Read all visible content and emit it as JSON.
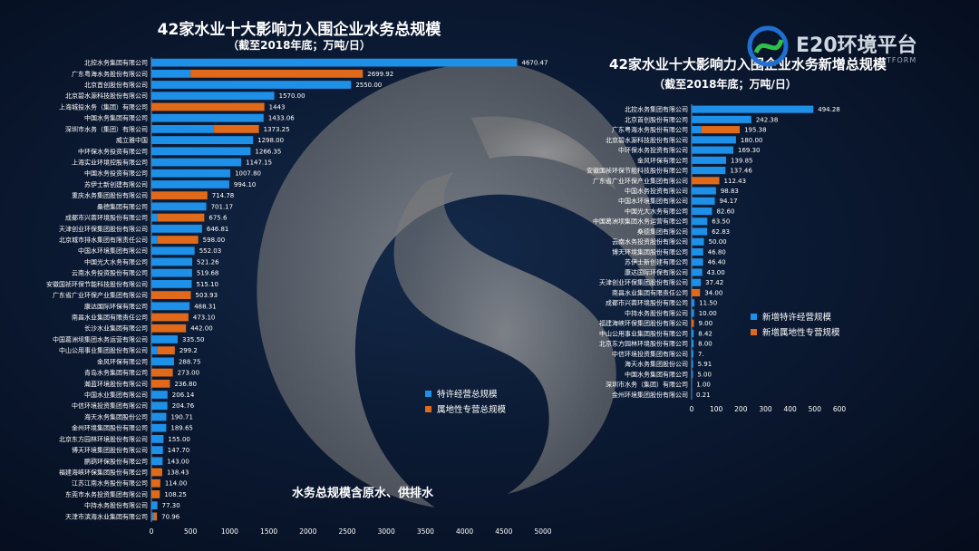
{
  "brand": {
    "name": "E20环境平台",
    "tagline": "TFORM"
  },
  "note": "水务总规模含原水、供排水",
  "colors": {
    "blue": "#1e90e8",
    "orange": "#e06a1a"
  },
  "chart_data": [
    {
      "type": "bar",
      "orientation": "horizontal",
      "stacked": true,
      "title": "42家水业十大影响力入围企业水务总规模",
      "subtitle": "（截至2018年底；万吨/日）",
      "xlim": [
        0,
        5000
      ],
      "xticks": [
        0,
        500,
        1000,
        1500,
        2000,
        2500,
        3000,
        3500,
        4000,
        4500,
        5000
      ],
      "legend": {
        "position": "bottom-right",
        "entries": [
          "特许经营总规模",
          "属地性专营总规模"
        ]
      },
      "categories": [
        "北控水务集团有限公司",
        "广东粤海水务股份有限公司",
        "北京首创股份有限公司",
        "北京碧水源科技股份有限公司",
        "上海城投水务（集团）有限公司",
        "中国水务集团有限公司",
        "深圳市水务（集团）有限公司",
        "威立雅中国",
        "中环保水务投资有限公司",
        "上海实业环境控股有限公司",
        "中国水务投资有限公司",
        "苏伊士新创建有限公司",
        "重庆水务集团股份有限公司",
        "桑德集团有限公司",
        "成都市兴蓉环境股份有限公司",
        "天津创业环保集团股份有限公司",
        "北京城市排水集团有限责任公司",
        "中国水环境集团有限公司",
        "中国光大水务有限公司",
        "云南水务投资股份有限公司",
        "安徽国祯环保节能科技股份有限公司",
        "广东省广业环保产业集团有限公司",
        "康达国际环保有限公司",
        "南昌水业集团有限责任公司",
        "长沙水业集团有限公司",
        "中国葛洲坝集团水务运营有限公司",
        "中山公用事业集团股份有限公司",
        "金风环保有限公司",
        "青岛水务集团有限公司",
        "瀚蓝环境股份有限公司",
        "中国水业集团有限公司",
        "中信环境投资集团有限公司",
        "海天水务集团股份公司",
        "金州环境集团股份有限公司",
        "北京东方园林环境股份有限公司",
        "博天环境集团股份有限公司",
        "鹏鹞环保股份有限公司",
        "福建海峡环保集团股份有限公司",
        "江苏江南水务股份有限公司",
        "东莞市水务投资集团有限公司",
        "中持水务股份有限公司",
        "天津市滨海水业集团有限公司"
      ],
      "totals": [
        "4670.47",
        "2699.92",
        "2550.00",
        "1570.00",
        "1443",
        "1433.06",
        "1373.25",
        "1298.00",
        "1266.35",
        "1147.15",
        "1007.80",
        "994.10",
        "714.78",
        "701.17",
        "675.6",
        "646.81",
        "598.00",
        "552.03",
        "521.26",
        "519.68",
        "515.10",
        "503.93",
        "488.31",
        "473.10",
        "442.00",
        "335.50",
        "299.2",
        "288.75",
        "273.00",
        "236.80",
        "206.14",
        "204.76",
        "190.71",
        "189.65",
        "155.00",
        "147.70",
        "143.00",
        "138.43",
        "114.00",
        "108.25",
        "77.30",
        "70.96"
      ],
      "series": [
        {
          "name": "特许经营总规模",
          "values": [
            4670.47,
            500,
            2550,
            1570,
            0,
            1433.06,
            800,
            1298,
            1266.35,
            1147.15,
            1007.8,
            994.1,
            0,
            701.17,
            80,
            646.81,
            80,
            552.03,
            521.26,
            519.68,
            515.1,
            0,
            488.31,
            0,
            0,
            335.5,
            80,
            288.75,
            0,
            0,
            206.14,
            204.76,
            190.71,
            189.65,
            155,
            147.7,
            143,
            0,
            0,
            0,
            77.3,
            30
          ]
        },
        {
          "name": "属地性专营总规模",
          "values": [
            0,
            2199.92,
            0,
            0,
            1443,
            0,
            573.25,
            0,
            0,
            0,
            0,
            0,
            714.78,
            0,
            595.6,
            0,
            518,
            0,
            0,
            0,
            0,
            503.93,
            0,
            473.1,
            442,
            0,
            219.2,
            0,
            273,
            236.8,
            0,
            0,
            0,
            0,
            0,
            0,
            0,
            138.43,
            114,
            108.25,
            0,
            40.96
          ]
        }
      ]
    },
    {
      "type": "bar",
      "orientation": "horizontal",
      "stacked": true,
      "title": "42家水业十大影响力入围企业水务新增总规模",
      "subtitle": "（截至2018年底；万吨/日）",
      "xlim": [
        0,
        600
      ],
      "xticks": [
        0,
        100,
        200,
        300,
        400,
        500,
        600
      ],
      "legend": {
        "position": "right",
        "entries": [
          "新增特许经营规模",
          "新增属地性专营规模"
        ]
      },
      "categories": [
        "北控水务集团有限公司",
        "北京首创股份有限公司",
        "广东粤海水务股份有限公司",
        "北京碧水源科技股份有限公司",
        "中环保水务投资有限公司",
        "金风环保有限公司",
        "安徽国祯环保节能科技股份有限公司",
        "广东省广业环保产业集团有限公司",
        "中国水务投资有限公司",
        "中国水环境集团有限公司",
        "中国光大水务有限公司",
        "中国葛洲坝集团水务运营有限公司",
        "桑德集团有限公司",
        "云南水务投资股份有限公司",
        "博天环境集团股份有限公司",
        "苏伊士新创建有限公司",
        "康达国际环保有限公司",
        "天津创业环保集团股份有限公司",
        "南昌水业集团有限责任公司",
        "成都市兴蓉环境股份有限公司",
        "中持水务股份有限公司",
        "福建海峡环保集团股份有限公司",
        "中山公用事业集团股份有限公司",
        "北京东方园林环境股份有限公司",
        "中信环境投资集团有限公司",
        "海天水务集团股份公司",
        "中国水务集团有限公司",
        "深圳市水务（集团）有限公司",
        "金州环境集团股份有限公司"
      ],
      "totals": [
        "494.28",
        "242.38",
        "195.38",
        "180.00",
        "169.30",
        "139.85",
        "137.46",
        "112.43",
        "98.83",
        "94.17",
        "82.60",
        "63.50",
        "62.83",
        "50.00",
        "46.80",
        "46.40",
        "43.00",
        "37.42",
        "34.00",
        "11.50",
        "10.00",
        "9.00",
        "8.42",
        "8.00",
        "7.",
        "5.91",
        "5.00",
        "1.00",
        "0.21"
      ],
      "series": [
        {
          "name": "新增特许经营规模",
          "values": [
            494.28,
            242.38,
            40,
            180,
            169.3,
            139.85,
            137.46,
            0,
            98.83,
            94.17,
            82.6,
            63.5,
            62.83,
            50,
            46.8,
            46.4,
            43,
            37.42,
            0,
            11.5,
            10,
            0,
            8.42,
            8,
            7,
            5.91,
            5,
            1,
            0.21
          ]
        },
        {
          "name": "新增属地性专营规模",
          "values": [
            0,
            0,
            155.38,
            0,
            0,
            0,
            0,
            112.43,
            0,
            0,
            0,
            0,
            0,
            0,
            0,
            0,
            0,
            0,
            34,
            0,
            0,
            9,
            0,
            0,
            0,
            0,
            0,
            0,
            0
          ]
        }
      ]
    }
  ]
}
